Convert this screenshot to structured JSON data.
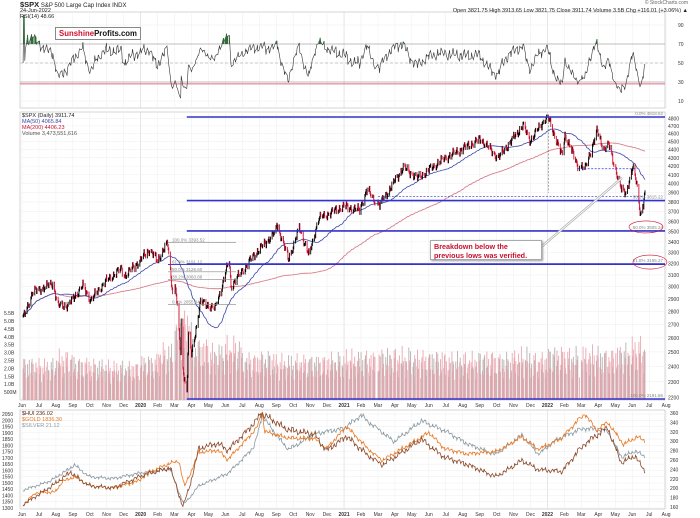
{
  "header": {
    "symbol": "$SPX",
    "name": "S&P 500 Large Cap Index INDX",
    "date": "24-Jun-2022",
    "ohlc": "Open 3821.75  High 3913.65  Low 3821.75  Close 3911.74  Volume 3.5B  Chg +116.01 (+3.06%) ▲",
    "copyright": "© StockCharts.com"
  },
  "logo": {
    "part1": "Sunshine",
    "part2": "Profits.com"
  },
  "annotation": {
    "text": "Breakdown below the previous lows was verified."
  },
  "colors": {
    "up": "#000000",
    "down": "#d0102e",
    "ma50": "#3a46a8",
    "ma200": "#d4707e",
    "fib": "#3333cc",
    "volume": "#e6a0a8",
    "gold": "#e87722",
    "hui": "#8b4a2b",
    "silver": "#8a9aa2",
    "rsi_fill": "#2f6a3a"
  },
  "chart_data": {
    "type": "line",
    "log_scale_price": true,
    "grid": true,
    "time_axis_labels": [
      "Jun",
      "Jul",
      "Aug",
      "Sep",
      "Oct",
      "Nov",
      "Dec",
      "2020",
      "Feb",
      "Mar",
      "Apr",
      "May",
      "Jun",
      "Jul",
      "Aug",
      "Sep",
      "Oct",
      "Nov",
      "Dec",
      "2021",
      "Feb",
      "Mar",
      "Apr",
      "May",
      "Jun",
      "Jul",
      "Aug",
      "Sep",
      "Oct",
      "Nov",
      "Dec",
      "2022",
      "Feb",
      "Mar",
      "Apr",
      "May",
      "Jun",
      "Jul",
      "Aug"
    ],
    "rsi": {
      "legend": "RSI(14) 48.66",
      "ylim": [
        0,
        100
      ],
      "ticks": [
        "90",
        "70",
        "50",
        "30",
        "10"
      ],
      "overbought": 70,
      "oversold": 30
    },
    "price": {
      "legend": "$SPX (Daily) 3911.74",
      "ma50_legend": "MA(50) 4065.84",
      "ma200_legend": "MA(200) 4406.23",
      "volume_legend": "Volume 3,473,551,616",
      "ylim": [
        2150,
        4850
      ],
      "ticks": [
        "4800",
        "4700",
        "4600",
        "4500",
        "4400",
        "4300",
        "4200",
        "4100",
        "4000",
        "3900",
        "3800",
        "3700",
        "3600",
        "3500",
        "3400",
        "3300",
        "3200",
        "3100",
        "3000",
        "2900",
        "2800",
        "2700",
        "2600",
        "2500",
        "2400",
        "2300",
        "2200"
      ],
      "series": [
        [
          "2019-06-03",
          2744
        ],
        [
          "2019-06-20",
          2954
        ],
        [
          "2019-07-26",
          3025
        ],
        [
          "2019-08-05",
          2844
        ],
        [
          "2019-08-23",
          2847
        ],
        [
          "2019-09-19",
          3006
        ],
        [
          "2019-10-03",
          2888
        ],
        [
          "2019-10-28",
          3039
        ],
        [
          "2019-11-27",
          3153
        ],
        [
          "2019-12-03",
          3093
        ],
        [
          "2019-12-31",
          3230
        ],
        [
          "2020-01-17",
          3329
        ],
        [
          "2020-01-31",
          3225
        ],
        [
          "2020-02-19",
          3386
        ],
        [
          "2020-02-28",
          2954
        ],
        [
          "2020-03-03",
          3003
        ],
        [
          "2020-03-12",
          2480
        ],
        [
          "2020-03-13",
          2711
        ],
        [
          "2020-03-16",
          2386
        ],
        [
          "2020-03-23",
          2237
        ],
        [
          "2020-03-26",
          2630
        ],
        [
          "2020-04-01",
          2470
        ],
        [
          "2020-04-17",
          2875
        ],
        [
          "2020-05-13",
          2820
        ],
        [
          "2020-06-08",
          3232
        ],
        [
          "2020-06-11",
          3002
        ],
        [
          "2020-07-22",
          3276
        ],
        [
          "2020-08-31",
          3500
        ],
        [
          "2020-09-02",
          3580
        ],
        [
          "2020-09-23",
          3237
        ],
        [
          "2020-10-12",
          3534
        ],
        [
          "2020-10-30",
          3270
        ],
        [
          "2020-11-16",
          3627
        ],
        [
          "2020-12-31",
          3756
        ],
        [
          "2021-01-29",
          3714
        ],
        [
          "2021-02-12",
          3934
        ],
        [
          "2021-03-04",
          3768
        ],
        [
          "2021-04-16",
          4185
        ],
        [
          "2021-05-12",
          4063
        ],
        [
          "2021-06-30",
          4297
        ],
        [
          "2021-08-31",
          4523
        ],
        [
          "2021-09-02",
          4537
        ],
        [
          "2021-10-04",
          4300
        ],
        [
          "2021-11-18",
          4704
        ],
        [
          "2021-12-01",
          4513
        ],
        [
          "2021-12-27",
          4791
        ],
        [
          "2022-01-03",
          4796
        ],
        [
          "2022-01-27",
          4326
        ],
        [
          "2022-02-02",
          4589
        ],
        [
          "2022-02-24",
          4225
        ],
        [
          "2022-03-08",
          4170
        ],
        [
          "2022-03-29",
          4631
        ],
        [
          "2022-04-11",
          4412
        ],
        [
          "2022-04-20",
          4460
        ],
        [
          "2022-05-02",
          4155
        ],
        [
          "2022-05-12",
          3930
        ],
        [
          "2022-05-20",
          3901
        ],
        [
          "2022-06-02",
          4176
        ],
        [
          "2022-06-09",
          4017
        ],
        [
          "2022-06-16",
          3666
        ],
        [
          "2022-06-21",
          3765
        ],
        [
          "2022-06-24",
          3911
        ]
      ],
      "fib_main": [
        {
          "label": "0.0%",
          "value": 4818.62,
          "text": "0.0%  4818.62"
        },
        {
          "label": "38.2%",
          "value": 3815.22,
          "text": "38.2%  3815.22"
        },
        {
          "label": "50.0%",
          "value": 3505.24,
          "text": "50.0%  3505.24"
        },
        {
          "label": "61.8%",
          "value": 3195.27,
          "text": "61.8%  3195.27"
        },
        {
          "label": "100.0%",
          "value": 2191.86,
          "text": "100.0%  2191.86"
        }
      ],
      "fib_2020": [
        {
          "value": 3393.52,
          "text": "100.0%  3393.52"
        },
        {
          "value": 3191.12,
          "text": "61.8%  3191.12"
        },
        {
          "value": 3126.6,
          "text": "50.0%  3126.60"
        },
        {
          "value": 3060.88,
          "text": "38.2%  3060.88"
        },
        {
          "value": 2855.84,
          "text": "0.0%  2855.84"
        }
      ],
      "previous_lows": [
        4170,
        3860
      ]
    },
    "volume": {
      "ticks": [
        "5.5B",
        "5.0B",
        "4.5B",
        "4.0B",
        "3.5B",
        "3.0B",
        "2.5B",
        "2.0B",
        "1.5B",
        "1.0B",
        "500M"
      ],
      "monthly_avg_billions": [
        2.0,
        1.9,
        2.3,
        2.0,
        1.9,
        1.8,
        1.8,
        2.1,
        2.6,
        4.2,
        2.9,
        2.6,
        2.9,
        2.2,
        2.3,
        2.1,
        2.1,
        2.1,
        2.2,
        2.3,
        2.3,
        2.4,
        2.4,
        2.3,
        2.3,
        2.2,
        2.2,
        2.3,
        2.2,
        2.4,
        2.2,
        2.5,
        2.4,
        2.5,
        2.4,
        2.6,
        2.9
      ]
    },
    "metals": {
      "hui_legend": "$HUI 236.02",
      "gold_legend": "$GOLD 1836.30",
      "silver_legend": "$SILVER 21.12",
      "left_ticks": [
        "2050",
        "2000",
        "1950",
        "1900",
        "1850",
        "1800",
        "1750",
        "1700",
        "1650",
        "1600",
        "1550",
        "1500",
        "1450",
        "1400",
        "1350",
        "1300"
      ],
      "right_ticks": [
        "360",
        "340",
        "320",
        "300",
        "280",
        "260",
        "240",
        "220",
        "200",
        "180",
        "160"
      ],
      "gold": [
        [
          "2019-06-03",
          1325
        ],
        [
          "2019-06-25",
          1420
        ],
        [
          "2019-07-31",
          1430
        ],
        [
          "2019-08-13",
          1515
        ],
        [
          "2019-09-04",
          1550
        ],
        [
          "2019-10-01",
          1480
        ],
        [
          "2019-11-12",
          1455
        ],
        [
          "2019-12-31",
          1520
        ],
        [
          "2020-01-08",
          1570
        ],
        [
          "2020-02-24",
          1660
        ],
        [
          "2020-03-09",
          1675
        ],
        [
          "2020-03-19",
          1475
        ],
        [
          "2020-04-14",
          1745
        ],
        [
          "2020-05-18",
          1760
        ],
        [
          "2020-06-05",
          1685
        ],
        [
          "2020-07-27",
          1940
        ],
        [
          "2020-08-06",
          2065
        ],
        [
          "2020-08-11",
          1910
        ],
        [
          "2020-09-23",
          1860
        ],
        [
          "2020-11-09",
          1855
        ],
        [
          "2020-11-30",
          1775
        ],
        [
          "2021-01-05",
          1950
        ],
        [
          "2021-03-08",
          1680
        ],
        [
          "2021-06-01",
          1905
        ],
        [
          "2021-06-30",
          1770
        ],
        [
          "2021-08-09",
          1730
        ],
        [
          "2021-09-30",
          1750
        ],
        [
          "2021-11-16",
          1870
        ],
        [
          "2021-12-15",
          1770
        ],
        [
          "2022-01-25",
          1850
        ],
        [
          "2022-03-08",
          2050
        ],
        [
          "2022-03-28",
          1920
        ],
        [
          "2022-04-18",
          1985
        ],
        [
          "2022-05-16",
          1810
        ],
        [
          "2022-06-10",
          1870
        ],
        [
          "2022-06-24",
          1836
        ]
      ],
      "hui": [
        [
          "2019-06-03",
          165
        ],
        [
          "2019-07-05",
          190
        ],
        [
          "2019-08-27",
          235
        ],
        [
          "2019-10-01",
          205
        ],
        [
          "2019-11-12",
          200
        ],
        [
          "2019-12-31",
          225
        ],
        [
          "2020-02-24",
          245
        ],
        [
          "2020-03-16",
          162
        ],
        [
          "2020-04-14",
          285
        ],
        [
          "2020-05-18",
          295
        ],
        [
          "2020-06-05",
          280
        ],
        [
          "2020-07-27",
          345
        ],
        [
          "2020-08-04",
          360
        ],
        [
          "2020-09-23",
          325
        ],
        [
          "2020-11-09",
          315
        ],
        [
          "2020-11-30",
          280
        ],
        [
          "2021-01-05",
          310
        ],
        [
          "2021-03-08",
          250
        ],
        [
          "2021-05-18",
          305
        ],
        [
          "2021-06-30",
          265
        ],
        [
          "2021-08-09",
          250
        ],
        [
          "2021-09-30",
          225
        ],
        [
          "2021-11-16",
          260
        ],
        [
          "2021-12-15",
          240
        ],
        [
          "2022-01-27",
          235
        ],
        [
          "2022-03-08",
          295
        ],
        [
          "2022-04-18",
          330
        ],
        [
          "2022-05-12",
          255
        ],
        [
          "2022-06-06",
          270
        ],
        [
          "2022-06-24",
          236
        ]
      ],
      "silver": [
        [
          "2019-06-03",
          14.6
        ],
        [
          "2019-07-19",
          16.3
        ],
        [
          "2019-09-04",
          19.5
        ],
        [
          "2019-10-01",
          17.2
        ],
        [
          "2019-11-12",
          16.8
        ],
        [
          "2019-12-31",
          17.9
        ],
        [
          "2020-02-24",
          18.7
        ],
        [
          "2020-03-18",
          12.0
        ],
        [
          "2020-04-14",
          15.5
        ],
        [
          "2020-06-05",
          17.8
        ],
        [
          "2020-07-22",
          23.0
        ],
        [
          "2020-08-06",
          29.0
        ],
        [
          "2020-09-23",
          22.5
        ],
        [
          "2020-11-09",
          25.5
        ],
        [
          "2020-12-31",
          26.4
        ],
        [
          "2021-02-01",
          29.0
        ],
        [
          "2021-03-30",
          24.0
        ],
        [
          "2021-05-18",
          28.0
        ],
        [
          "2021-06-30",
          26.0
        ],
        [
          "2021-08-09",
          23.5
        ],
        [
          "2021-09-29",
          21.5
        ],
        [
          "2021-11-16",
          25.3
        ],
        [
          "2021-12-15",
          21.6
        ],
        [
          "2022-01-20",
          24.5
        ],
        [
          "2022-03-08",
          26.5
        ],
        [
          "2022-04-18",
          26.0
        ],
        [
          "2022-05-13",
          21.0
        ],
        [
          "2022-06-06",
          22.2
        ],
        [
          "2022-06-24",
          21.12
        ]
      ]
    }
  }
}
